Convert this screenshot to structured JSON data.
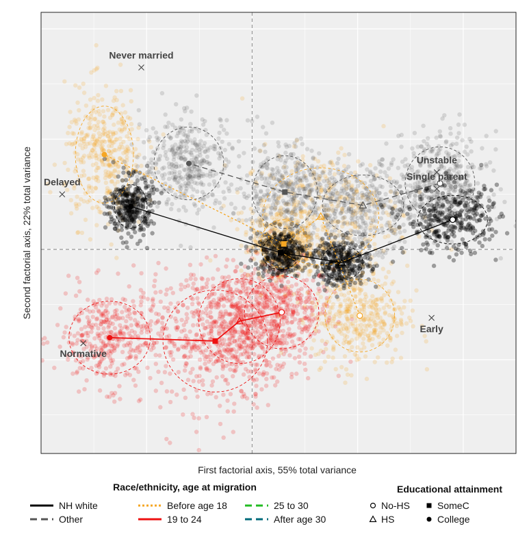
{
  "chart_data": {
    "type": "scatter",
    "title": "",
    "xlabel": "First factorial axis, 55% total variance",
    "ylabel": "Second factorial axis, 22% total variance",
    "xlim": [
      -2.0,
      2.5
    ],
    "ylim": [
      -1.85,
      2.15
    ],
    "grid": true,
    "reference_lines": {
      "x": 0,
      "y": 0
    },
    "colors": {
      "nh_white": "#000000",
      "other": "#555555",
      "before_18": "#F5A623",
      "19_24": "#EE1111",
      "25_30": "#22BB22",
      "after_30": "#006A7A"
    },
    "annotations": [
      {
        "label": "Never married",
        "x": -1.05,
        "y": 1.65
      },
      {
        "label": "Delayed",
        "x": -1.8,
        "y": 0.5
      },
      {
        "label": "Unstable",
        "x": 1.75,
        "y": 0.7
      },
      {
        "label": "Single parent",
        "x": 1.75,
        "y": 0.55
      },
      {
        "label": "Normative",
        "x": -1.6,
        "y": -0.85
      },
      {
        "label": "Early",
        "x": 1.7,
        "y": -0.62
      }
    ],
    "series": [
      {
        "name": "NH white",
        "color": "#000000",
        "line": "solid",
        "points": [
          {
            "education": "No-HS",
            "x": 1.9,
            "y": 0.27,
            "sd": [
              0.3,
              0.2
            ]
          },
          {
            "education": "HS",
            "x": 0.85,
            "y": -0.12,
            "sd": [
              0.18,
              0.14
            ]
          },
          {
            "education": "SomeC",
            "x": 0.27,
            "y": -0.03,
            "sd": [
              0.16,
              0.14
            ]
          },
          {
            "education": "College",
            "x": -1.15,
            "y": 0.39,
            "sd": [
              0.14,
              0.18
            ]
          }
        ]
      },
      {
        "name": "Other",
        "color": "#555555",
        "line": "dashed",
        "points": [
          {
            "education": "No-HS",
            "x": 1.78,
            "y": 0.6,
            "sd": [
              0.3,
              0.3
            ]
          },
          {
            "education": "HS",
            "x": 1.05,
            "y": 0.4,
            "sd": [
              0.35,
              0.25
            ]
          },
          {
            "education": "SomeC",
            "x": 0.31,
            "y": 0.52,
            "sd": [
              0.28,
              0.3
            ]
          },
          {
            "education": "College",
            "x": -0.6,
            "y": 0.78,
            "sd": [
              0.3,
              0.3
            ]
          }
        ]
      },
      {
        "name": "Before age 18",
        "color": "#F5A623",
        "line": "dotted",
        "points": [
          {
            "education": "No-HS",
            "x": 1.02,
            "y": -0.6,
            "sd": [
              0.3,
              0.3
            ]
          },
          {
            "education": "HS",
            "x": 0.65,
            "y": 0.3,
            "sd": [
              0.5,
              0.4
            ]
          },
          {
            "education": "SomeC",
            "x": 0.3,
            "y": 0.05,
            "sd": [
              0.2,
              0.2
            ]
          },
          {
            "education": "College",
            "x": -1.4,
            "y": 0.86,
            "sd": [
              0.25,
              0.4
            ]
          }
        ]
      },
      {
        "name": "19 to 24",
        "color": "#EE1111",
        "line": "solid",
        "points": [
          {
            "education": "No-HS",
            "x": 0.28,
            "y": -0.57,
            "sd": [
              0.32,
              0.3
            ]
          },
          {
            "education": "HS",
            "x": -0.12,
            "y": -0.65,
            "sd": [
              0.35,
              0.35
            ]
          },
          {
            "education": "SomeC",
            "x": -0.35,
            "y": -0.83,
            "sd": [
              0.45,
              0.42
            ]
          },
          {
            "education": "College",
            "x": -1.35,
            "y": -0.8,
            "sd": [
              0.35,
              0.3
            ]
          }
        ]
      },
      {
        "name": "25 to 30",
        "color": "#22BB22",
        "line": "dashed",
        "points": []
      },
      {
        "name": "After age 30",
        "color": "#006A7A",
        "line": "dashed",
        "points": []
      }
    ]
  },
  "legend": {
    "race_title": "Race/ethnicity, age at migration",
    "race_items": [
      {
        "label": "NH white",
        "color": "#000000",
        "dash": ""
      },
      {
        "label": "Other",
        "color": "#555555",
        "dash": "10,6"
      },
      {
        "label": "Before age 18",
        "color": "#F5A623",
        "dash": "3,3"
      },
      {
        "label": "19 to 24",
        "color": "#EE1111",
        "dash": ""
      },
      {
        "label": "25 to 30",
        "color": "#22BB22",
        "dash": "10,6"
      },
      {
        "label": "After age 30",
        "color": "#006A7A",
        "dash": "10,6"
      }
    ],
    "edu_title": "Educational attainment",
    "edu_items": [
      {
        "label": "No-HS",
        "shape": "circle-open"
      },
      {
        "label": "SomeC",
        "shape": "square"
      },
      {
        "label": "HS",
        "shape": "triangle-open"
      },
      {
        "label": "College",
        "shape": "circle"
      }
    ]
  }
}
